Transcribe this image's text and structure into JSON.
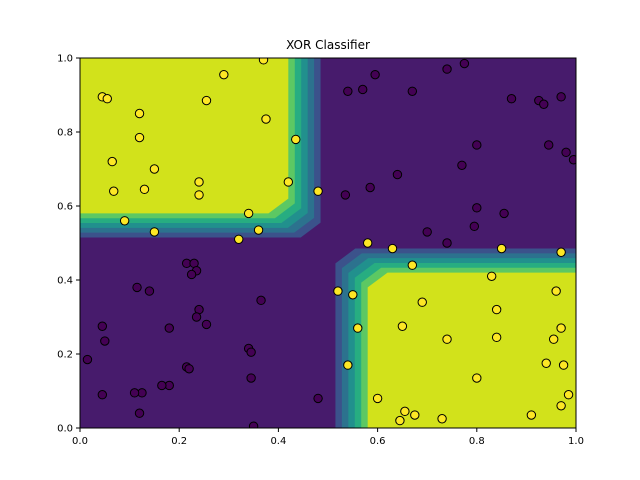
{
  "chart_data": {
    "type": "scatter",
    "title": "XOR Classifier",
    "xlabel": "",
    "ylabel": "",
    "xlim": [
      0.0,
      1.0
    ],
    "ylim": [
      0.0,
      1.0
    ],
    "x_ticks": [
      "0.0",
      "0.2",
      "0.4",
      "0.6",
      "0.8",
      "1.0"
    ],
    "y_ticks": [
      "0.0",
      "0.2",
      "0.4",
      "0.6",
      "0.8",
      "1.0"
    ],
    "grid": false,
    "legend": "none",
    "colors": {
      "background_class0": "#471b6c",
      "region_class1": "#d2e21b",
      "contour_levels": [
        "#471b6c",
        "#3b528b",
        "#2c728e",
        "#21908d",
        "#27ad81",
        "#5cc863",
        "#d2e21b"
      ],
      "point_class0": "#440154",
      "point_class1": "#fde725",
      "point_edge": "#000000"
    },
    "decision_regions": [
      {
        "class": 1,
        "x": [
          0.0,
          0.5
        ],
        "y": [
          0.5,
          1.0
        ]
      },
      {
        "class": 1,
        "x": [
          0.5,
          1.0
        ],
        "y": [
          0.0,
          0.5
        ]
      }
    ],
    "series": [
      {
        "class": 1,
        "x": [
          0.045,
          0.055,
          0.065,
          0.068,
          0.12,
          0.12,
          0.13,
          0.15,
          0.24,
          0.24,
          0.255,
          0.29,
          0.37,
          0.375,
          0.435,
          0.42,
          0.48,
          0.09,
          0.15,
          0.34,
          0.36,
          0.32,
          0.58,
          0.63,
          0.67,
          0.85,
          0.97,
          0.52,
          0.55,
          0.56,
          0.54,
          0.65,
          0.69,
          0.6,
          0.74,
          0.83,
          0.84,
          0.84,
          0.8,
          0.96,
          0.955,
          0.97,
          0.975,
          0.94,
          0.97,
          0.985,
          0.645,
          0.655,
          0.675,
          0.73,
          0.91
        ],
        "y": [
          0.895,
          0.89,
          0.72,
          0.64,
          0.85,
          0.785,
          0.645,
          0.7,
          0.665,
          0.63,
          0.885,
          0.955,
          0.995,
          0.835,
          0.78,
          0.665,
          0.64,
          0.56,
          0.53,
          0.58,
          0.535,
          0.51,
          0.5,
          0.485,
          0.44,
          0.485,
          0.475,
          0.37,
          0.36,
          0.27,
          0.17,
          0.275,
          0.34,
          0.08,
          0.24,
          0.41,
          0.32,
          0.245,
          0.135,
          0.37,
          0.24,
          0.27,
          0.17,
          0.175,
          0.06,
          0.09,
          0.02,
          0.045,
          0.035,
          0.025,
          0.035
        ]
      },
      {
        "class": 0,
        "x": [
          0.54,
          0.57,
          0.595,
          0.67,
          0.74,
          0.775,
          0.87,
          0.925,
          0.935,
          0.97,
          0.945,
          0.8,
          0.77,
          0.98,
          0.995,
          0.64,
          0.585,
          0.535,
          0.8,
          0.855,
          0.795,
          0.7,
          0.74,
          0.215,
          0.23,
          0.235,
          0.225,
          0.14,
          0.115,
          0.125,
          0.18,
          0.24,
          0.235,
          0.255,
          0.365,
          0.34,
          0.345,
          0.215,
          0.22,
          0.345,
          0.18,
          0.165,
          0.11,
          0.12,
          0.045,
          0.05,
          0.045,
          0.015,
          0.48,
          0.35
        ],
        "y": [
          0.91,
          0.915,
          0.955,
          0.91,
          0.97,
          0.985,
          0.89,
          0.885,
          0.875,
          0.895,
          0.765,
          0.765,
          0.71,
          0.745,
          0.725,
          0.685,
          0.65,
          0.63,
          0.595,
          0.58,
          0.545,
          0.53,
          0.5,
          0.445,
          0.445,
          0.425,
          0.415,
          0.37,
          0.38,
          0.095,
          0.27,
          0.32,
          0.3,
          0.28,
          0.345,
          0.215,
          0.205,
          0.165,
          0.16,
          0.135,
          0.115,
          0.115,
          0.095,
          0.04,
          0.275,
          0.235,
          0.09,
          0.185,
          0.08,
          0.005
        ]
      }
    ]
  }
}
